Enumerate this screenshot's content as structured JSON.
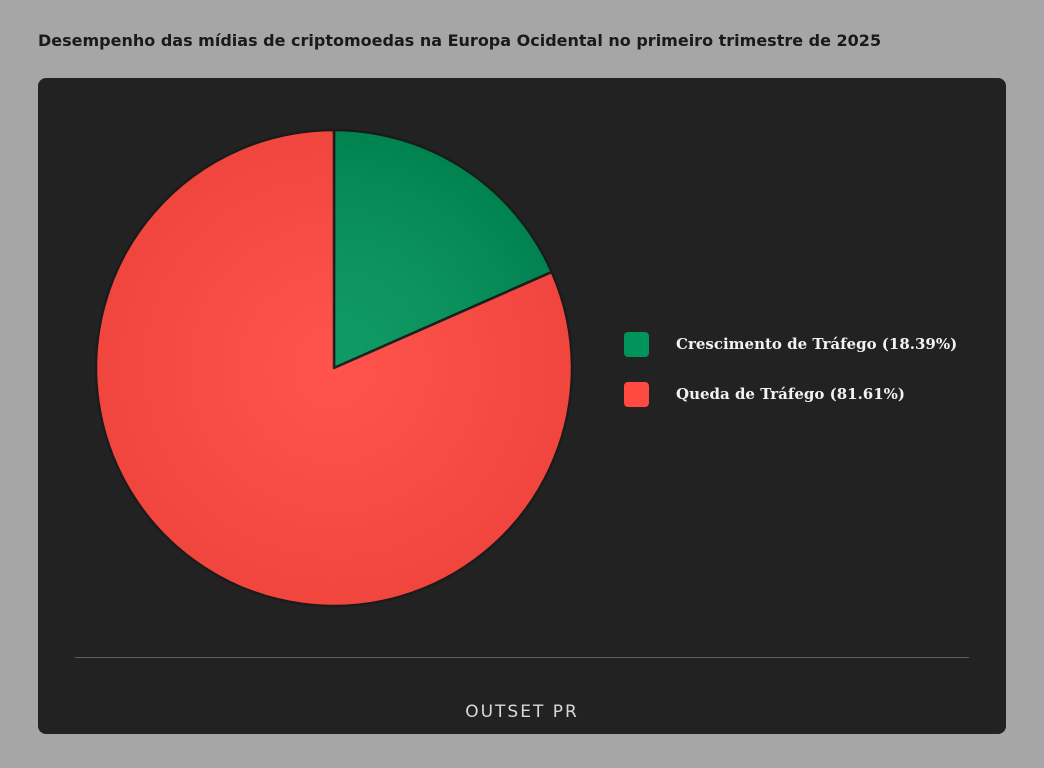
{
  "chart_data": {
    "type": "pie",
    "title": "Desempenho das mídias de criptomoedas na Europa Ocidental no primeiro trimestre de 2025",
    "slices": [
      {
        "label": "Crescimento de Tráfego (18.39%)",
        "value": 18.39,
        "color": "#00945a"
      },
      {
        "label": "Queda de Tráfego (81.61%)",
        "value": 81.61,
        "color": "#ff4a42"
      }
    ],
    "legend_position": "right"
  },
  "footer": {
    "brand": "OUTSET PR"
  }
}
